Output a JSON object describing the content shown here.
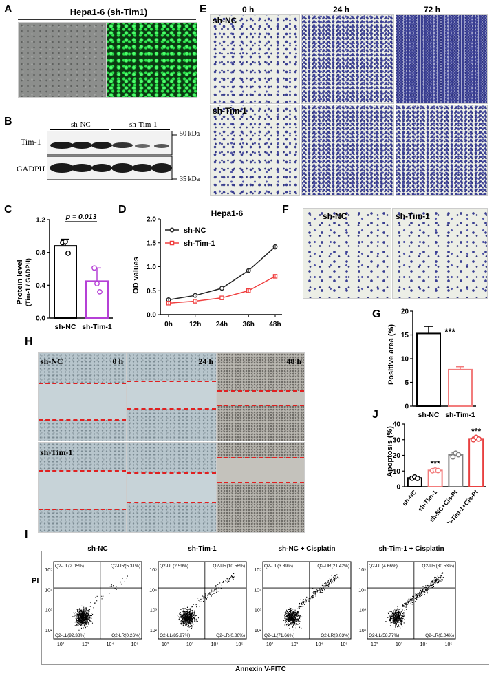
{
  "panels": {
    "A": "A",
    "B": "B",
    "C": "C",
    "D": "D",
    "E": "E",
    "F": "F",
    "G": "G",
    "H": "H",
    "I": "I",
    "J": "J"
  },
  "panel_a": {
    "title": "Hepa1-6 (sh-Tim1)"
  },
  "panel_b": {
    "group1": "sh-NC",
    "group2": "sh-Tim-1",
    "row1": "Tim-1",
    "row2": "GADPH",
    "marker1": "50 kDa",
    "marker2": "35 kDa"
  },
  "panel_e": {
    "times": [
      "0 h",
      "24 h",
      "72 h"
    ],
    "rows": [
      "sh-NC",
      "sh-Tim-1"
    ]
  },
  "panel_f": {
    "labels": [
      "sh-NC",
      "sh-Tim-1"
    ]
  },
  "panel_h": {
    "times": [
      "0 h",
      "24 h",
      "48 h"
    ],
    "rows": [
      "sh-NC",
      "sh-Tim-1"
    ]
  },
  "panel_i": {
    "titles": [
      "sh-NC",
      "sh-Tim-1",
      "sh-NC + Cisplatin",
      "sh-Tim-1 + Cisplatin"
    ],
    "quadrants": [
      [
        "Q2-UL(2.05%)",
        "Q2-UR(5.31%)",
        "Q2-LL(92.38%)",
        "Q2-LR(0.26%)"
      ],
      [
        "Q2-UL(2.59%)",
        "Q2-UR(10.58%)",
        "Q2-LL(85.97%)",
        "Q2-LR(0.86%)"
      ],
      [
        "Q2-UL(3.89%)",
        "Q2-UR(21.42%)",
        "Q2-LL(71.66%)",
        "Q2-LR(3.03%)"
      ],
      [
        "Q2-UL(4.66%)",
        "Q2-UR(30.53%)",
        "Q2-LL(58.77%)",
        "Q2-LR(6.04%)"
      ]
    ],
    "ylabel": "PI",
    "xlabel": "Annexin V-FITC",
    "ticks": [
      "10²",
      "10³",
      "10⁴",
      "10⁵"
    ]
  },
  "chart_data": [
    {
      "panel": "C",
      "type": "bar",
      "categories": [
        "sh-NC",
        "sh-Tim-1"
      ],
      "values": [
        0.88,
        0.45
      ],
      "errors": [
        0.08,
        0.16
      ],
      "points": [
        [
          0.92,
          0.93,
          0.79
        ],
        [
          0.61,
          0.42,
          0.32
        ]
      ],
      "ylabel_1": "Protein level",
      "ylabel_2": "(Tim-1 / GADPH)",
      "ylim": [
        0,
        1.2
      ],
      "yticks": [
        "0.0",
        "0.4",
        "0.8",
        "1.2"
      ],
      "annotation": "p = 0.013",
      "colors": [
        "#000000",
        "#b540d6"
      ]
    },
    {
      "panel": "D",
      "type": "line",
      "title": "Hepa1-6",
      "x": [
        "0h",
        "12h",
        "24h",
        "36h",
        "48h"
      ],
      "series": [
        {
          "name": "sh-NC",
          "values": [
            0.31,
            0.4,
            0.55,
            0.92,
            1.42
          ],
          "color": "#222222"
        },
        {
          "name": "sh-Tim-1",
          "values": [
            0.24,
            0.28,
            0.35,
            0.5,
            0.8
          ],
          "color": "#f04040"
        }
      ],
      "ylabel": "OD values",
      "ylim": [
        0,
        2.0
      ],
      "yticks": [
        "0.0",
        "0.5",
        "1.0",
        "1.5",
        "2.0"
      ]
    },
    {
      "panel": "G",
      "type": "bar",
      "categories": [
        "sh-NC",
        "sh-Tim-1"
      ],
      "values": [
        15.3,
        7.7
      ],
      "errors": [
        1.5,
        0.6
      ],
      "ylabel": "Positive area (%)",
      "ylim": [
        0,
        20
      ],
      "yticks": [
        "0",
        "5",
        "10",
        "15",
        "20"
      ],
      "annotation": "***",
      "colors": [
        "#000000",
        "#f27c7c"
      ]
    },
    {
      "panel": "J",
      "type": "bar",
      "categories": [
        "sh-NC",
        "sh-Tim-1",
        "sh-NC+Cis-Pt",
        "sh-Tim-1+Cis-Pt"
      ],
      "values": [
        5.6,
        10.4,
        20.3,
        30.6
      ],
      "errors": [
        0.4,
        0.4,
        1.3,
        0.9
      ],
      "points": [
        [
          5.4,
          6.2,
          5.3
        ],
        [
          10.2,
          10.6,
          10.3
        ],
        [
          19.0,
          21.4,
          20.4
        ],
        [
          30.0,
          31.5,
          30.4
        ]
      ],
      "ylabel": "Apoptosis (%)",
      "ylim": [
        0,
        40
      ],
      "yticks": [
        "0",
        "10",
        "20",
        "30",
        "40"
      ],
      "annotations": [
        "",
        "***",
        "",
        "***"
      ],
      "colors": [
        "#000000",
        "#f27c7c",
        "#808080",
        "#e84040"
      ]
    }
  ]
}
